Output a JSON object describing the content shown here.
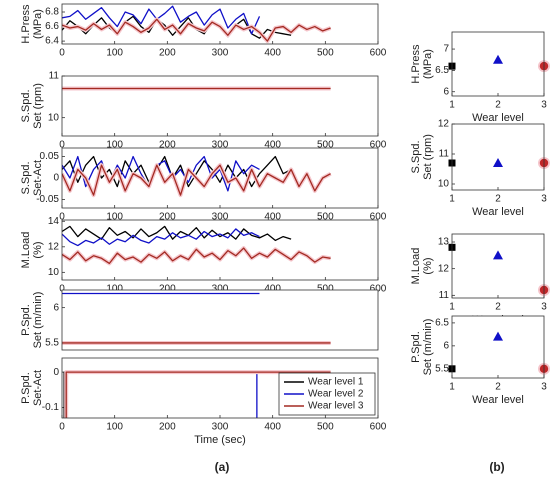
{
  "panel_labels": [
    "(a)",
    "(b)"
  ],
  "chart_data": [
    {
      "type": "line",
      "ylabel": [
        "H.Press",
        "(MPa)"
      ],
      "xlim": [
        0,
        600
      ],
      "xticks": [
        0,
        100,
        200,
        300,
        400,
        500,
        600
      ],
      "ylim": [
        6.36,
        6.91
      ],
      "yticks": [
        6.4,
        6.6,
        6.8
      ],
      "series": [
        {
          "color": "#000000",
          "x": [
            0,
            15,
            30,
            45,
            60,
            75,
            90,
            105,
            120,
            135,
            150,
            165,
            180,
            195,
            210,
            225,
            240,
            255,
            270,
            285,
            300,
            315,
            330,
            345,
            360,
            375,
            390,
            405,
            420,
            435
          ],
          "values": [
            6.55,
            6.68,
            6.6,
            6.5,
            6.62,
            6.72,
            6.58,
            6.5,
            6.66,
            6.74,
            6.6,
            6.52,
            6.7,
            6.62,
            6.48,
            6.6,
            6.72,
            6.56,
            6.5,
            6.66,
            6.58,
            6.46,
            6.62,
            6.7,
            6.5,
            6.44,
            6.56,
            6.52,
            6.5,
            6.48
          ]
        },
        {
          "color": "#1010c8",
          "x": [
            0,
            15,
            30,
            45,
            60,
            75,
            90,
            105,
            120,
            135,
            150,
            165,
            180,
            195,
            210,
            225,
            240,
            255,
            270,
            285,
            300,
            315,
            330,
            345,
            360,
            375
          ],
          "values": [
            6.72,
            6.74,
            6.82,
            6.7,
            6.78,
            6.86,
            6.72,
            6.6,
            6.8,
            6.76,
            6.64,
            6.84,
            6.7,
            6.78,
            6.88,
            6.66,
            6.74,
            6.8,
            6.62,
            6.76,
            6.84,
            6.58,
            6.7,
            6.78,
            6.5,
            6.74
          ]
        },
        {
          "color": "#a32a22",
          "halo": "#f5c6cc",
          "x": [
            0,
            15,
            30,
            45,
            60,
            75,
            90,
            105,
            120,
            135,
            150,
            165,
            180,
            195,
            210,
            225,
            240,
            255,
            270,
            285,
            300,
            315,
            330,
            345,
            360,
            375,
            390,
            405,
            420,
            435,
            450,
            465,
            480,
            495,
            510
          ],
          "values": [
            6.62,
            6.58,
            6.6,
            6.55,
            6.64,
            6.56,
            6.62,
            6.5,
            6.66,
            6.6,
            6.52,
            6.58,
            6.7,
            6.56,
            6.62,
            6.5,
            6.64,
            6.58,
            6.54,
            6.66,
            6.6,
            6.48,
            6.62,
            6.56,
            6.6,
            6.52,
            6.4,
            6.58,
            6.6,
            6.52,
            6.62,
            6.56,
            6.6,
            6.54,
            6.58
          ]
        }
      ]
    },
    {
      "type": "line",
      "ylabel": [
        "S.Spd.",
        "Set (rpm)"
      ],
      "xlim": [
        0,
        600
      ],
      "xticks": [
        0,
        100,
        200,
        300,
        400,
        500,
        600
      ],
      "ylim": [
        9.56,
        11
      ],
      "yticks": [
        10,
        11
      ],
      "series": [
        {
          "color": "#000000",
          "x": [
            0,
            440
          ],
          "values": [
            10.7,
            10.7
          ]
        },
        {
          "color": "#1010c8",
          "x": [
            0,
            375
          ],
          "values": [
            10.7,
            10.7
          ]
        },
        {
          "color": "#a32a22",
          "halo": "#f5c6cc",
          "x": [
            0,
            510
          ],
          "values": [
            10.7,
            10.7
          ]
        }
      ]
    },
    {
      "type": "line",
      "ylabel": [
        "S.Spd.",
        "Set-Act"
      ],
      "xlim": [
        0,
        600
      ],
      "xticks": [
        0,
        100,
        200,
        300,
        400,
        500,
        600
      ],
      "ylim": [
        -0.07,
        0.07
      ],
      "yticks": [
        -0.05,
        0,
        0.05
      ],
      "series": [
        {
          "color": "#000000",
          "x": [
            0,
            15,
            30,
            45,
            60,
            75,
            90,
            105,
            120,
            135,
            150,
            165,
            180,
            195,
            210,
            225,
            240,
            255,
            270,
            285,
            300,
            315,
            330,
            345,
            360,
            375,
            390,
            405,
            420,
            435
          ],
          "values": [
            0.02,
            0.04,
            -0.01,
            0.03,
            0.05,
            0,
            0.02,
            -0.02,
            0.04,
            0.01,
            0.03,
            -0.01,
            0.02,
            0.05,
            0,
            0.03,
            -0.02,
            0.01,
            0.04,
            0.02,
            -0.01,
            0.03,
            0,
            0.02,
            -0.02,
            0.01,
            0.03,
            0.05,
            0.01,
            0.02
          ]
        },
        {
          "color": "#1010c8",
          "x": [
            0,
            15,
            30,
            45,
            60,
            75,
            90,
            105,
            120,
            135,
            150,
            165,
            180,
            195,
            210,
            225,
            240,
            255,
            270,
            285,
            300,
            315,
            330,
            345,
            360,
            375
          ],
          "values": [
            0.03,
            0,
            0.05,
            -0.02,
            0.02,
            0.04,
            -0.01,
            0.03,
            0,
            0.05,
            0.01,
            -0.02,
            0.03,
            0.04,
            0,
            0.02,
            -0.01,
            0.03,
            0.05,
            0,
            0.02,
            -0.03,
            0.04,
            0.01,
            0.03,
            0.02
          ]
        },
        {
          "color": "#a32a22",
          "halo": "#f5c6cc",
          "x": [
            0,
            15,
            30,
            45,
            60,
            75,
            90,
            105,
            120,
            135,
            150,
            165,
            180,
            195,
            210,
            225,
            240,
            255,
            270,
            285,
            300,
            315,
            330,
            345,
            360,
            375,
            390,
            405,
            420,
            435,
            450,
            465,
            480,
            495,
            510
          ],
          "values": [
            0.01,
            -0.03,
            0.02,
            0,
            -0.04,
            0.03,
            -0.01,
            0.02,
            -0.03,
            0.01,
            0,
            -0.02,
            0.03,
            -0.01,
            0.01,
            -0.04,
            0.02,
            0,
            -0.02,
            0.01,
            0.03,
            -0.01,
            0,
            -0.03,
            0.02,
            -0.02,
            0.01,
            0,
            -0.01,
            0.02,
            -0.02,
            0.01,
            -0.03,
            0,
            0.01
          ]
        }
      ]
    },
    {
      "type": "line",
      "ylabel": [
        "M.Load",
        "(%)"
      ],
      "xlim": [
        0,
        600
      ],
      "xticks": [
        0,
        100,
        200,
        300,
        400,
        500,
        600
      ],
      "ylim": [
        9.4,
        14.1
      ],
      "yticks": [
        10,
        12,
        14
      ],
      "series": [
        {
          "color": "#000000",
          "x": [
            0,
            15,
            30,
            45,
            60,
            75,
            90,
            105,
            120,
            135,
            150,
            165,
            180,
            195,
            210,
            225,
            240,
            255,
            270,
            285,
            300,
            315,
            330,
            345,
            360,
            375,
            390,
            405,
            420,
            435
          ],
          "values": [
            13.2,
            13.6,
            12.8,
            13.4,
            13,
            12.6,
            13.5,
            12.9,
            13.2,
            12.7,
            13.4,
            12.8,
            13.1,
            13.6,
            12.6,
            13.2,
            12.9,
            13.5,
            12.7,
            13.3,
            12.8,
            13.1,
            12.6,
            13.4,
            12.9,
            12.7,
            13,
            12.5,
            12.8,
            12.6
          ]
        },
        {
          "color": "#1010c8",
          "x": [
            0,
            15,
            30,
            45,
            60,
            75,
            90,
            105,
            120,
            135,
            150,
            165,
            180,
            195,
            210,
            225,
            240,
            255,
            270,
            285,
            300,
            315,
            330,
            345,
            360,
            375
          ],
          "values": [
            13,
            12.4,
            12.1,
            12.5,
            12.3,
            12.7,
            12.2,
            12.6,
            12.4,
            12.9,
            12.5,
            12.3,
            12.8,
            12.6,
            13.1,
            12.7,
            12.9,
            12.6,
            13.2,
            12.8,
            13,
            12.7,
            13.4,
            12.9,
            13.1,
            12.8
          ]
        },
        {
          "color": "#a32a22",
          "halo": "#f5c6cc",
          "x": [
            0,
            15,
            30,
            45,
            60,
            75,
            90,
            105,
            120,
            135,
            150,
            165,
            180,
            195,
            210,
            225,
            240,
            255,
            270,
            285,
            300,
            315,
            330,
            345,
            360,
            375,
            390,
            405,
            420,
            435,
            450,
            465,
            480,
            495,
            510
          ],
          "values": [
            11.4,
            11,
            11.6,
            10.9,
            11.3,
            11.1,
            10.7,
            11.5,
            11,
            11.2,
            10.8,
            11.4,
            11.1,
            11.6,
            10.9,
            11.3,
            11,
            11.8,
            11.2,
            11.5,
            11,
            11.7,
            11.3,
            11.9,
            11.1,
            11.5,
            11.2,
            11.8,
            11.4,
            11,
            11.6,
            11.3,
            10.8,
            11.2,
            11.1
          ]
        }
      ]
    },
    {
      "type": "line",
      "ylabel": [
        "P.Spd.",
        "Set (m/min)"
      ],
      "xlim": [
        0,
        600
      ],
      "ylim": [
        5.4,
        6.25
      ],
      "yticks": [
        5.5,
        6
      ],
      "series": [
        {
          "color": "#000000",
          "x": [
            0,
            440
          ],
          "values": [
            5.5,
            5.5
          ]
        },
        {
          "color": "#1010c8",
          "x": [
            0,
            375
          ],
          "values": [
            6.2,
            6.2
          ]
        },
        {
          "color": "#a32a22",
          "halo": "#f5c6cc",
          "x": [
            0,
            510
          ],
          "values": [
            5.5,
            5.5
          ]
        }
      ]
    },
    {
      "type": "line",
      "ylabel": [
        "P.Spd.",
        "Set-Act"
      ],
      "xlabel": "Time (sec)",
      "xlim": [
        0,
        600
      ],
      "xticks": [
        0,
        100,
        200,
        300,
        400,
        500,
        600
      ],
      "ylim": [
        -0.13,
        0.04
      ],
      "yticks": [
        -0.1,
        0
      ],
      "legend": "lower right",
      "series": [
        {
          "name": "Wear level 1",
          "color": "#000000",
          "x": [
            4,
            4,
            440
          ],
          "values": [
            -0.15,
            0,
            0
          ]
        },
        {
          "name": "Wear level 2",
          "color": "#1010c8",
          "x": [
            6,
            6,
            370,
            370
          ],
          "values": [
            -0.15,
            0,
            0,
            -0.15
          ]
        },
        {
          "name": "Wear level 3",
          "color": "#a32a22",
          "halo": "#f5c6cc",
          "x": [
            8,
            8,
            510
          ],
          "values": [
            -0.15,
            0,
            0
          ]
        }
      ]
    },
    {
      "type": "scatter",
      "ylabel": [
        "H.Press",
        "(MPa)"
      ],
      "xlabel": "Wear level",
      "xlim": [
        1,
        3
      ],
      "xticks": [
        1,
        2,
        3
      ],
      "ylim": [
        5.9,
        7.4
      ],
      "yticks": [
        6,
        6.5,
        7
      ],
      "series": [
        {
          "color": "#000000",
          "marker": "square",
          "x": [
            1
          ],
          "values": [
            6.6
          ]
        },
        {
          "color": "#1010c8",
          "marker": "triangle",
          "x": [
            2
          ],
          "values": [
            6.75
          ]
        },
        {
          "color": "#c0282a",
          "marker": "circle",
          "halo": "#f5c6cc",
          "x": [
            3
          ],
          "values": [
            6.6
          ]
        }
      ]
    },
    {
      "type": "scatter",
      "ylabel": [
        "S.Spd.",
        "Set (rpm)"
      ],
      "xlabel": "Wear level",
      "xlim": [
        1,
        3
      ],
      "xticks": [
        1,
        2,
        3
      ],
      "ylim": [
        9.8,
        12
      ],
      "yticks": [
        10,
        11,
        12
      ],
      "series": [
        {
          "color": "#000000",
          "marker": "square",
          "x": [
            1
          ],
          "values": [
            10.7
          ]
        },
        {
          "color": "#1010c8",
          "marker": "triangle",
          "x": [
            2
          ],
          "values": [
            10.7
          ]
        },
        {
          "color": "#c0282a",
          "marker": "circle",
          "halo": "#f5c6cc",
          "x": [
            3
          ],
          "values": [
            10.7
          ]
        }
      ]
    },
    {
      "type": "scatter",
      "ylabel": [
        "M.Load",
        "(%)"
      ],
      "xlabel": "Wear level",
      "xlim": [
        1,
        3
      ],
      "xticks": [
        1,
        2,
        3
      ],
      "ylim": [
        10.9,
        13.3
      ],
      "yticks": [
        11,
        12,
        13
      ],
      "series": [
        {
          "color": "#000000",
          "marker": "square",
          "x": [
            1
          ],
          "values": [
            12.8
          ]
        },
        {
          "color": "#1010c8",
          "marker": "triangle",
          "x": [
            2
          ],
          "values": [
            12.5
          ]
        },
        {
          "color": "#c0282a",
          "marker": "circle",
          "halo": "#f5c6cc",
          "x": [
            3
          ],
          "values": [
            11.2
          ]
        }
      ]
    },
    {
      "type": "scatter",
      "ylabel": [
        "P.Spd.",
        "Set (m/min)"
      ],
      "xlabel": "Wear level",
      "xlim": [
        1,
        3
      ],
      "xticks": [
        1,
        2,
        3
      ],
      "ylim": [
        5.3,
        6.65
      ],
      "yticks": [
        5.5,
        6,
        6.5
      ],
      "series": [
        {
          "color": "#000000",
          "marker": "square",
          "x": [
            1
          ],
          "values": [
            5.5
          ]
        },
        {
          "color": "#1010c8",
          "marker": "triangle",
          "x": [
            2
          ],
          "values": [
            6.2
          ]
        },
        {
          "color": "#c0282a",
          "marker": "circle",
          "halo": "#f5c6cc",
          "x": [
            3
          ],
          "values": [
            5.5
          ]
        }
      ]
    }
  ]
}
